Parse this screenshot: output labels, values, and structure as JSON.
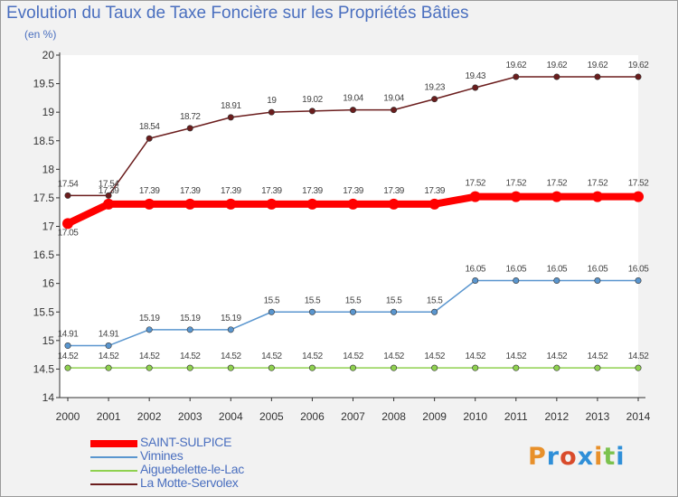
{
  "title": "Evolution du Taux de Taxe Foncière sur les Propriétés Bâties",
  "subtitle": "(en %)",
  "logo": "Proxiti",
  "chart_data": {
    "type": "line",
    "title": "Evolution du Taux de Taxe Foncière sur les Propriétés Bâties",
    "ylabel": "(en %)",
    "x": [
      "2000",
      "2001",
      "2002",
      "2003",
      "2004",
      "2005",
      "2006",
      "2007",
      "2008",
      "2009",
      "2010",
      "2011",
      "2012",
      "2013",
      "2014"
    ],
    "ylim": [
      14,
      20
    ],
    "yticks": [
      "14",
      "14.5",
      "15",
      "15.5",
      "16",
      "16.5",
      "17",
      "17.5",
      "18",
      "18.5",
      "19",
      "19.5",
      "20"
    ],
    "legend_position": "bottom-left",
    "series": [
      {
        "name": "SAINT-SULPICE",
        "color": "#ff0000",
        "labels": [
          "17.05",
          "17.39",
          "17.39",
          "17.39",
          "17.39",
          "17.39",
          "17.39",
          "17.39",
          "17.39",
          "17.39",
          "17.52",
          "17.52",
          "17.52",
          "17.52",
          "17.52"
        ],
        "values": [
          17.05,
          17.39,
          17.39,
          17.39,
          17.39,
          17.39,
          17.39,
          17.39,
          17.39,
          17.39,
          17.52,
          17.52,
          17.52,
          17.52,
          17.52
        ]
      },
      {
        "name": "Vimines",
        "color": "#5a96cf",
        "labels": [
          "14.91",
          "14.91",
          "15.19",
          "15.19",
          "15.19",
          "15.5",
          "15.5",
          "15.5",
          "15.5",
          "15.5",
          "16.05",
          "16.05",
          "16.05",
          "16.05",
          "16.05"
        ],
        "values": [
          14.91,
          14.91,
          15.19,
          15.19,
          15.19,
          15.5,
          15.5,
          15.5,
          15.5,
          15.5,
          16.05,
          16.05,
          16.05,
          16.05,
          16.05
        ]
      },
      {
        "name": "Aiguebelette-le-Lac",
        "color": "#8fd14f",
        "labels": [
          "14.52",
          "14.52",
          "14.52",
          "14.52",
          "14.52",
          "14.52",
          "14.52",
          "14.52",
          "14.52",
          "14.52",
          "14.52",
          "14.52",
          "14.52",
          "14.52",
          "14.52"
        ],
        "values": [
          14.52,
          14.52,
          14.52,
          14.52,
          14.52,
          14.52,
          14.52,
          14.52,
          14.52,
          14.52,
          14.52,
          14.52,
          14.52,
          14.52,
          14.52
        ]
      },
      {
        "name": "La Motte-Servolex",
        "color": "#6b1d1d",
        "labels": [
          "17.54",
          "17.54",
          "18.54",
          "18.72",
          "18.91",
          "19",
          "19.02",
          "19.04",
          "19.04",
          "19.23",
          "19.43",
          "19.62",
          "19.62",
          "19.62",
          "19.62"
        ],
        "values": [
          17.54,
          17.54,
          18.54,
          18.72,
          18.91,
          19,
          19.02,
          19.04,
          19.04,
          19.23,
          19.43,
          19.62,
          19.62,
          19.62,
          19.62
        ]
      }
    ]
  }
}
